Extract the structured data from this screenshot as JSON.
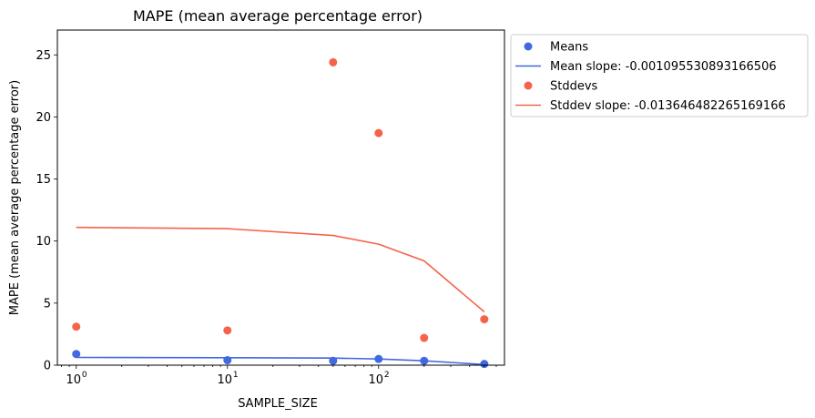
{
  "chart_data": {
    "type": "scatter",
    "title": "MAPE (mean average percentage error)",
    "xlabel": "SAMPLE_SIZE",
    "ylabel": "MAPE (mean average percentage error)",
    "x_scale": "log",
    "xlim": [
      0.75,
      680
    ],
    "ylim": [
      0,
      27
    ],
    "x_ticks": [
      {
        "value": 1,
        "base": "10",
        "exp": "0"
      },
      {
        "value": 10,
        "base": "10",
        "exp": "1"
      },
      {
        "value": 100,
        "base": "10",
        "exp": "2"
      }
    ],
    "y_ticks": [
      {
        "value": 0,
        "label": "0"
      },
      {
        "value": 5,
        "label": "5"
      },
      {
        "value": 10,
        "label": "10"
      },
      {
        "value": 15,
        "label": "15"
      },
      {
        "value": 20,
        "label": "20"
      },
      {
        "value": 25,
        "label": "25"
      }
    ],
    "grid": false,
    "legend_position": "outside upper-right",
    "x": [
      1,
      10,
      50,
      100,
      200,
      500
    ],
    "series": [
      {
        "name": "Means",
        "kind": "scatter",
        "color": "#4169e1",
        "values": [
          0.9,
          0.4,
          0.35,
          0.5,
          0.35,
          0.1
        ]
      },
      {
        "name": "Mean slope: -0.001095530893166506",
        "kind": "line",
        "color": "#4169e1",
        "values": [
          0.62,
          0.6,
          0.57,
          0.5,
          0.35,
          0.05
        ]
      },
      {
        "name": "Stddevs",
        "kind": "scatter",
        "color": "#f5634a",
        "values": [
          3.1,
          2.8,
          24.4,
          18.7,
          2.2,
          3.7
        ]
      },
      {
        "name": "Stddev slope: -0.013646482265169166",
        "kind": "line",
        "color": "#f5634a",
        "values": [
          11.1,
          11.0,
          10.45,
          9.75,
          8.4,
          4.3
        ]
      }
    ]
  }
}
